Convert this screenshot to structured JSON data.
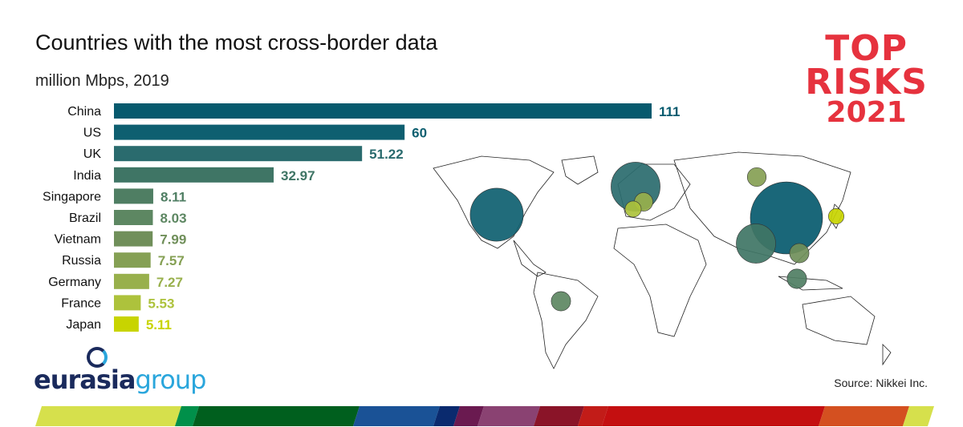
{
  "chart_data": {
    "type": "bar",
    "orientation": "horizontal",
    "title": "Countries with the most cross-border data",
    "subtitle": "million Mbps, 2019",
    "categories": [
      "China",
      "US",
      "UK",
      "India",
      "Singapore",
      "Brazil",
      "Vietnam",
      "Russia",
      "Germany",
      "France",
      "Japan"
    ],
    "values": [
      111,
      60,
      51.22,
      32.97,
      8.11,
      8.03,
      7.99,
      7.57,
      7.27,
      5.53,
      5.11
    ],
    "value_labels": [
      "111",
      "60",
      "51.22",
      "32.97",
      "8.11",
      "8.03",
      "7.99",
      "7.57",
      "7.27",
      "5.53",
      "5.11"
    ],
    "colors": [
      "#075a6e",
      "#0e5f70",
      "#2a6b6e",
      "#3f7565",
      "#4f7e63",
      "#5d8762",
      "#708f5a",
      "#85a054",
      "#98b04c",
      "#adc23c",
      "#c8d400"
    ],
    "xlim": [
      0,
      111
    ],
    "grid": false,
    "map_bubbles": "bubble size proportional to value, placed on world map"
  },
  "branding": {
    "top_line1": "TOP",
    "top_line2": "RISKS",
    "top_line3": "2021",
    "company_a": "eurasia",
    "company_b": "group"
  },
  "source": "Source: Nikkei Inc.",
  "stripe_colors": [
    "#d6e04c",
    "#00904a",
    "#005f1e",
    "#1a5296",
    "#0a2a6e",
    "#6a1a50",
    "#8a4272",
    "#8a1428",
    "#c21c18",
    "#c40f10",
    "#d45020",
    "#d6e04c"
  ]
}
